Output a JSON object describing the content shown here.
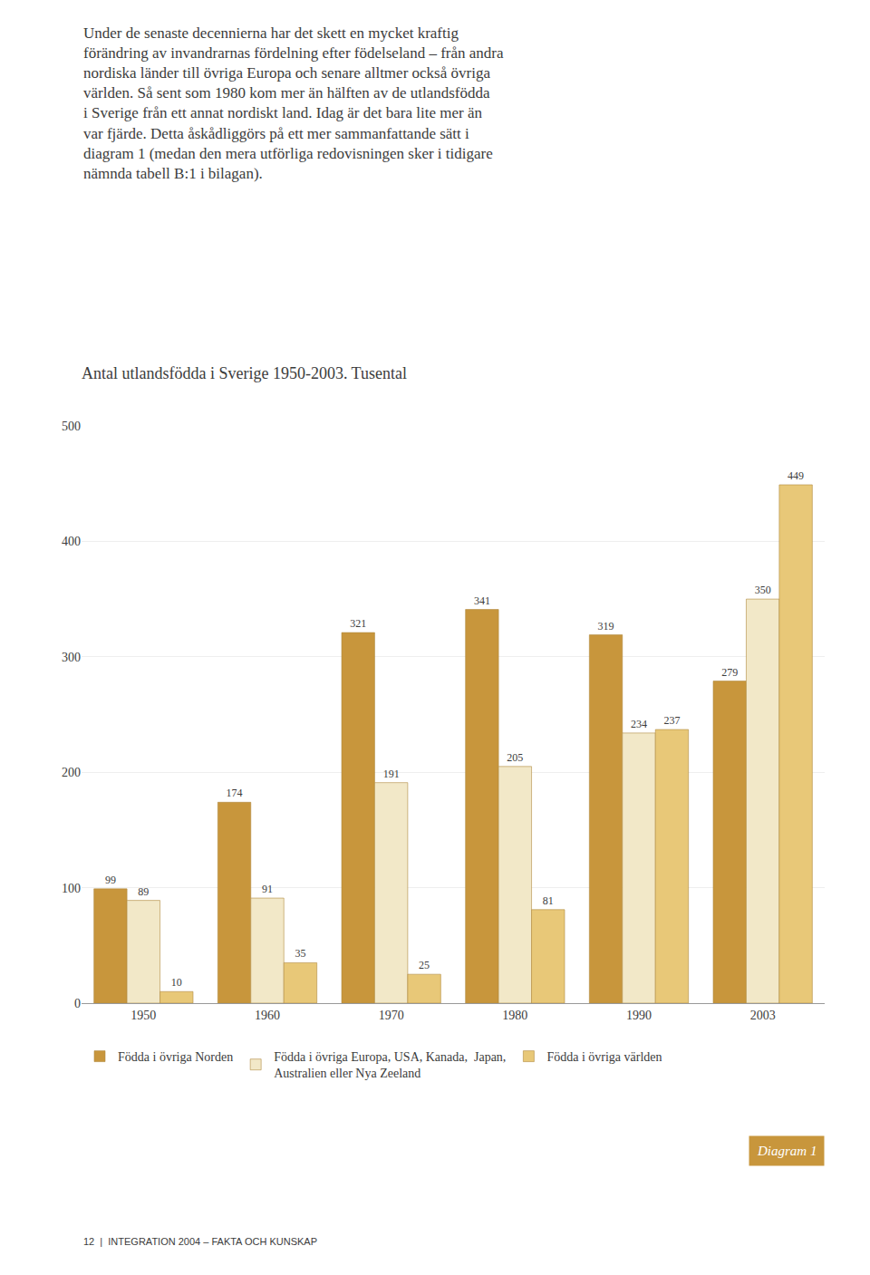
{
  "chart_data": {
    "type": "bar",
    "title": "Antal utlandsfödda i Sverige 1950-2003. Tusental",
    "categories": [
      "1950",
      "1960",
      "1970",
      "1980",
      "1990",
      "2003"
    ],
    "series": [
      {
        "name": "Födda i övriga Norden",
        "color": "#C8963C",
        "values": [
          99,
          174,
          321,
          341,
          319,
          279
        ]
      },
      {
        "name": "Födda i övriga Europa, USA, Kanada,  Japan,\nAustralien eller Nya Zeeland",
        "color": "#F2E8C8",
        "values": [
          89,
          91,
          191,
          205,
          234,
          350
        ]
      },
      {
        "name": "Födda i övriga världen",
        "color": "#E8C878",
        "values": [
          10,
          35,
          25,
          81,
          237,
          449
        ]
      }
    ],
    "ylim": [
      0,
      500
    ],
    "yticks": [
      0,
      100,
      200,
      300,
      400,
      500
    ],
    "grid": true,
    "legend": "bottom",
    "data_labels": true,
    "annotations": [
      "Under de senaste decennierna har det skett en mycket kraftig\nförändring av invandrarnas fördelning efter födelseland – från andra\nnordiska länder till övriga Europa och senare alltmer också övriga\nvärlden. Så sent som 1980 kom mer än hälften av de utlandsfödda\ni Sverige från ett annat nordiskt land. Idag är det bara lite mer än\nvar fjärde. Detta åskådliggörs på ett mer sammanfattande sätt i\ndiagram 1 (medan den mera utförliga redovisningen sker i tidigare\nnämnda tabell B:1 i bilagan).",
      "Diagram 1",
      "12  |  INTEGRATION 2004 – FAKTA OCH KUNSKAP"
    ]
  }
}
